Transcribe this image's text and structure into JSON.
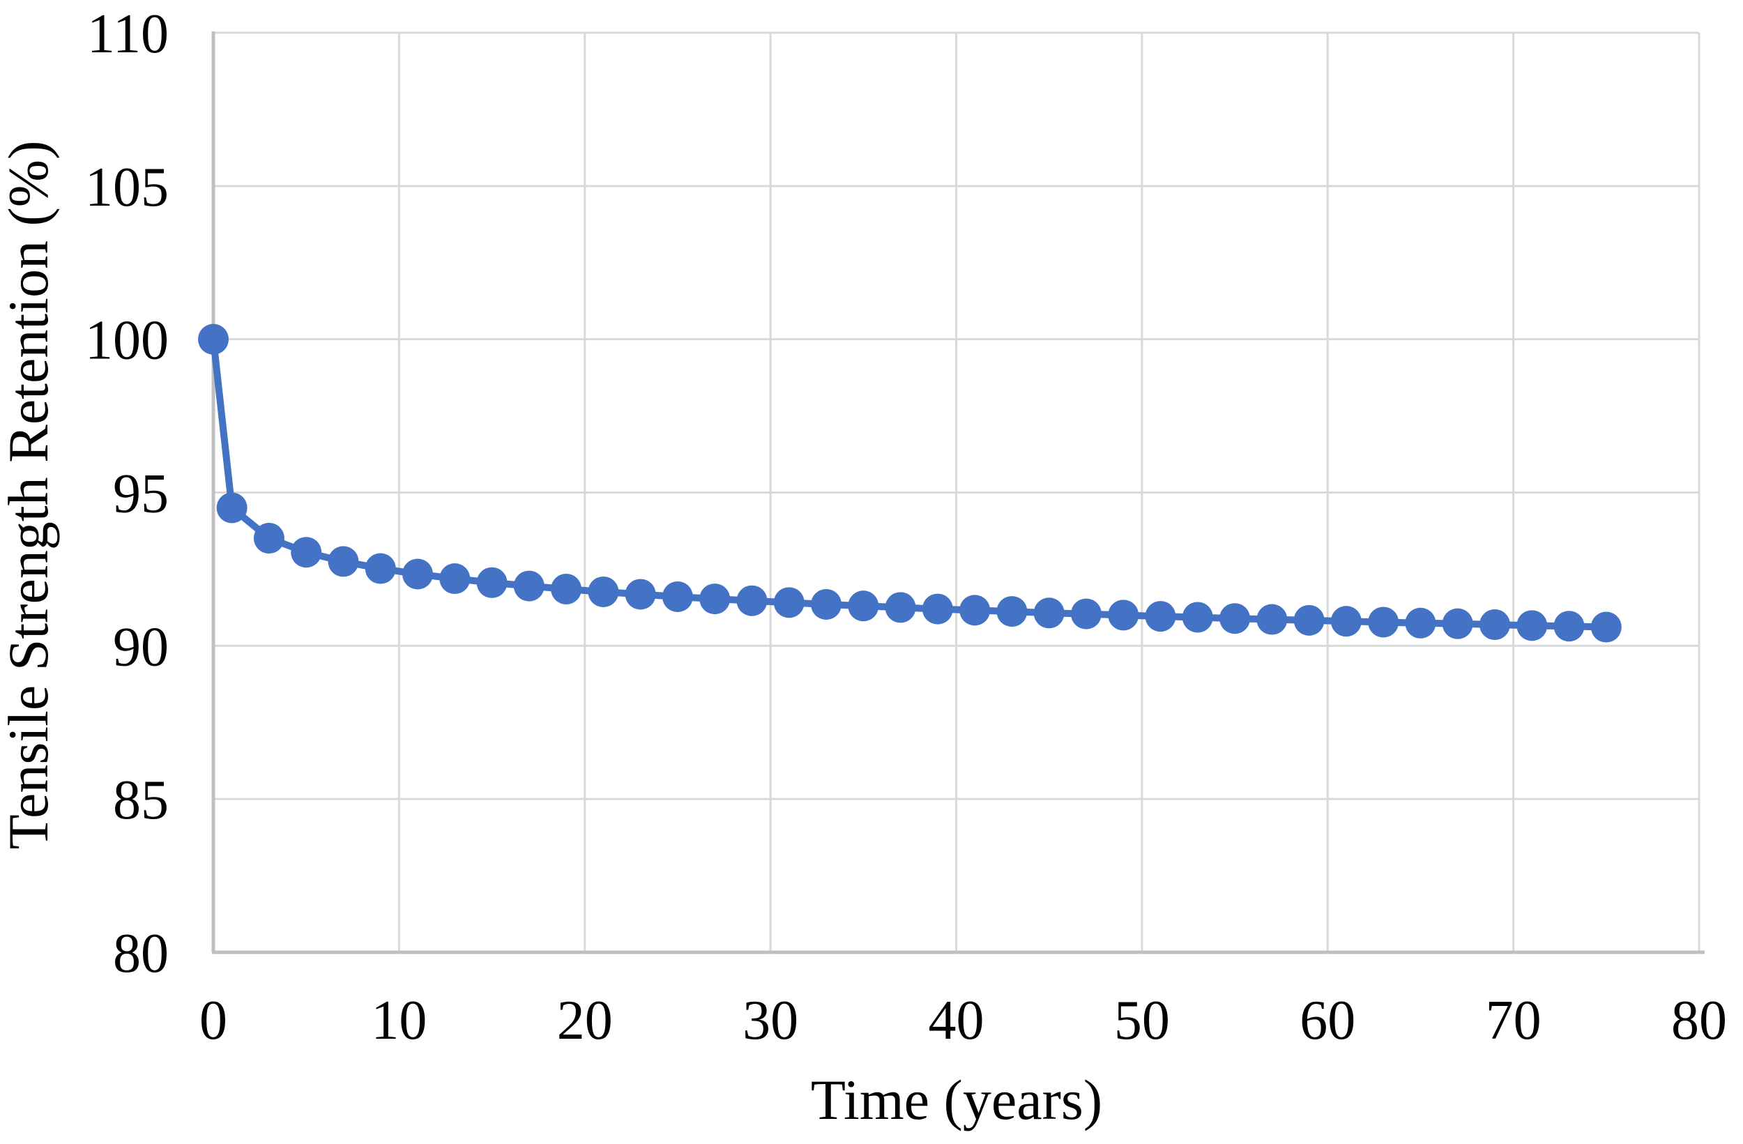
{
  "chart_data": {
    "type": "line",
    "title": "",
    "xlabel": "Time (years)",
    "ylabel": "Tensile Strength Retention (%)",
    "xlim": [
      0,
      80
    ],
    "ylim": [
      80,
      110
    ],
    "x_ticks": [
      0,
      10,
      20,
      30,
      40,
      50,
      60,
      70,
      80
    ],
    "y_ticks": [
      80,
      85,
      90,
      95,
      100,
      105,
      110
    ],
    "grid": true,
    "legend_position": "none",
    "series": [
      {
        "name": "tensile-strength-retention",
        "marker": "circle",
        "color": "#4472C4",
        "x": [
          0,
          1,
          3,
          5,
          7,
          9,
          11,
          13,
          15,
          17,
          19,
          21,
          23,
          25,
          27,
          29,
          31,
          33,
          35,
          37,
          39,
          41,
          43,
          45,
          47,
          49,
          51,
          53,
          55,
          57,
          59,
          61,
          63,
          65,
          67,
          69,
          71,
          73,
          75
        ],
        "values": [
          100,
          94.5,
          93.51,
          93.05,
          92.75,
          92.52,
          92.34,
          92.19,
          92.06,
          91.95,
          91.85,
          91.76,
          91.68,
          91.6,
          91.53,
          91.47,
          91.41,
          91.35,
          91.3,
          91.25,
          91.2,
          91.16,
          91.12,
          91.07,
          91.04,
          91.0,
          90.96,
          90.93,
          90.89,
          90.86,
          90.83,
          90.8,
          90.77,
          90.74,
          90.72,
          90.69,
          90.66,
          90.64,
          90.61
        ]
      }
    ],
    "colors": {
      "gridline": "#D9D9D9",
      "axis_line": "#BFBFBF",
      "marker": "#4472C4",
      "text": "#000000",
      "background": "#FFFFFF"
    }
  }
}
